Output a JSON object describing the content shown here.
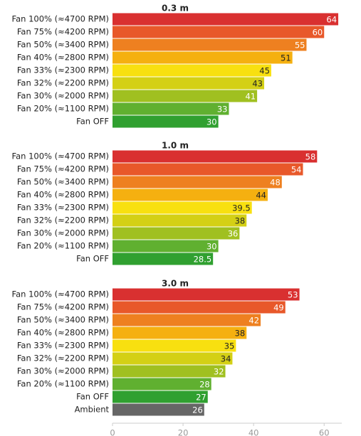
{
  "chart_data": [
    {
      "type": "bar",
      "title": "0.3 m",
      "categories": [
        "Fan 100% (≈4700 RPM)",
        "Fan 75% (≈4200 RPM)",
        "Fan 50% (≈3400 RPM)",
        "Fan 40% (≈2800 RPM)",
        "Fan 33% (≈2300 RPM)",
        "Fan 32% (≈2200 RPM)",
        "Fan 30% (≈2000 RPM)",
        "Fan 20% (≈1100 RPM)",
        "Fan OFF"
      ],
      "values": [
        64,
        60,
        55,
        51,
        45,
        43,
        41,
        33,
        30
      ],
      "colors": [
        "#d93030",
        "#e8582a",
        "#ee8020",
        "#f5b010",
        "#f8e010",
        "#d4d015",
        "#a0c020",
        "#60b030",
        "#30a030"
      ],
      "xlim": [
        0,
        65
      ]
    },
    {
      "type": "bar",
      "title": "1.0 m",
      "categories": [
        "Fan 100% (≈4700 RPM)",
        "Fan 75% (≈4200 RPM)",
        "Fan 50% (≈3400 RPM)",
        "Fan 40% (≈2800 RPM)",
        "Fan 33% (≈2300 RPM)",
        "Fan 32% (≈2200 RPM)",
        "Fan 30% (≈2000 RPM)",
        "Fan 20% (≈1100 RPM)",
        "Fan OFF"
      ],
      "values": [
        58,
        54,
        48,
        44,
        39.5,
        38,
        36,
        30,
        28.5
      ],
      "colors": [
        "#d93030",
        "#e8582a",
        "#ee8020",
        "#f5b010",
        "#f8e010",
        "#d4d015",
        "#a0c020",
        "#60b030",
        "#30a030"
      ],
      "xlim": [
        0,
        65
      ]
    },
    {
      "type": "bar",
      "title": "3.0 m",
      "categories": [
        "Fan 100% (≈4700 RPM)",
        "Fan 75% (≈4200 RPM)",
        "Fan 50% (≈3400 RPM)",
        "Fan 40% (≈2800 RPM)",
        "Fan 33% (≈2300 RPM)",
        "Fan 32% (≈2200 RPM)",
        "Fan 30% (≈2000 RPM)",
        "Fan 20% (≈1100 RPM)",
        "Fan OFF",
        "Ambient"
      ],
      "values": [
        53,
        49,
        42,
        38,
        35,
        34,
        32,
        28,
        27,
        26
      ],
      "colors": [
        "#d93030",
        "#e8582a",
        "#ee8020",
        "#f5b010",
        "#f8e010",
        "#d4d015",
        "#a0c020",
        "#60b030",
        "#30a030",
        "#666666"
      ],
      "xlim": [
        0,
        65
      ],
      "xticks": [
        0,
        20,
        40,
        60
      ]
    }
  ]
}
